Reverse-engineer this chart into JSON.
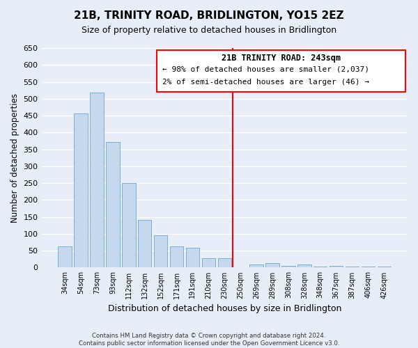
{
  "title": "21B, TRINITY ROAD, BRIDLINGTON, YO15 2EZ",
  "subtitle": "Size of property relative to detached houses in Bridlington",
  "xlabel": "Distribution of detached houses by size in Bridlington",
  "ylabel": "Number of detached properties",
  "bar_labels": [
    "34sqm",
    "54sqm",
    "73sqm",
    "93sqm",
    "112sqm",
    "132sqm",
    "152sqm",
    "171sqm",
    "191sqm",
    "210sqm",
    "230sqm",
    "250sqm",
    "269sqm",
    "289sqm",
    "308sqm",
    "328sqm",
    "348sqm",
    "367sqm",
    "387sqm",
    "406sqm",
    "426sqm"
  ],
  "bar_values": [
    62,
    457,
    519,
    371,
    250,
    142,
    95,
    62,
    58,
    27,
    27,
    0,
    10,
    13,
    5,
    10,
    3,
    5,
    2,
    3,
    2
  ],
  "bar_color": "#c5d8ed",
  "bar_edge_color": "#7aafd4",
  "ylim": [
    0,
    650
  ],
  "yticks": [
    0,
    50,
    100,
    150,
    200,
    250,
    300,
    350,
    400,
    450,
    500,
    550,
    600,
    650
  ],
  "property_line_bin_index": 11,
  "annotation_title": "21B TRINITY ROAD: 243sqm",
  "annotation_line1": "← 98% of detached houses are smaller (2,037)",
  "annotation_line2": "2% of semi-detached houses are larger (46) →",
  "footer_line1": "Contains HM Land Registry data © Crown copyright and database right 2024.",
  "footer_line2": "Contains public sector information licensed under the Open Government Licence v3.0.",
  "bg_color": "#e8eef8",
  "grid_color": "#ffffff",
  "title_fontsize": 11,
  "subtitle_fontsize": 9
}
